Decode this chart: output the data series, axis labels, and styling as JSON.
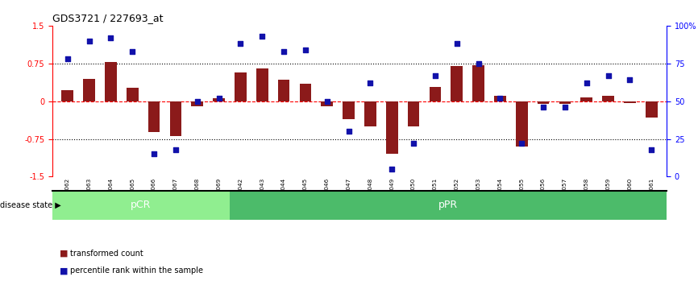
{
  "title": "GDS3721 / 227693_at",
  "samples": [
    "GSM559062",
    "GSM559063",
    "GSM559064",
    "GSM559065",
    "GSM559066",
    "GSM559067",
    "GSM559068",
    "GSM559069",
    "GSM559042",
    "GSM559043",
    "GSM559044",
    "GSM559045",
    "GSM559046",
    "GSM559047",
    "GSM559048",
    "GSM559049",
    "GSM559050",
    "GSM559051",
    "GSM559052",
    "GSM559053",
    "GSM559054",
    "GSM559055",
    "GSM559056",
    "GSM559057",
    "GSM559058",
    "GSM559059",
    "GSM559060",
    "GSM559061"
  ],
  "transformed_count": [
    0.22,
    0.45,
    0.78,
    0.27,
    -0.62,
    -0.7,
    -0.1,
    0.06,
    0.57,
    0.65,
    0.43,
    0.35,
    -0.1,
    -0.35,
    -0.5,
    -1.05,
    -0.5,
    0.28,
    0.7,
    0.72,
    0.1,
    -0.9,
    -0.06,
    -0.05,
    0.07,
    0.1,
    -0.04,
    -0.32
  ],
  "percentile_rank": [
    78,
    90,
    92,
    83,
    15,
    18,
    50,
    52,
    88,
    93,
    83,
    84,
    50,
    30,
    62,
    5,
    22,
    67,
    88,
    75,
    52,
    22,
    46,
    46,
    62,
    67,
    64,
    18
  ],
  "pcr_count": 8,
  "ppr_count": 20,
  "bar_color": "#8B1A1A",
  "dot_color": "#1111AA",
  "pcr_bg": "#90EE90",
  "ppr_bg": "#4CBB6A",
  "ylim": [
    -1.5,
    1.5
  ],
  "y_ticks_left": [
    -1.5,
    -0.75,
    0,
    0.75,
    1.5
  ],
  "y_ticks_right_vals": [
    0,
    25,
    50,
    75,
    100
  ],
  "y_ticks_right_pos": [
    -1.5,
    -0.75,
    0,
    0.75,
    1.5
  ],
  "dotted_lines": [
    -0.75,
    0.75
  ]
}
